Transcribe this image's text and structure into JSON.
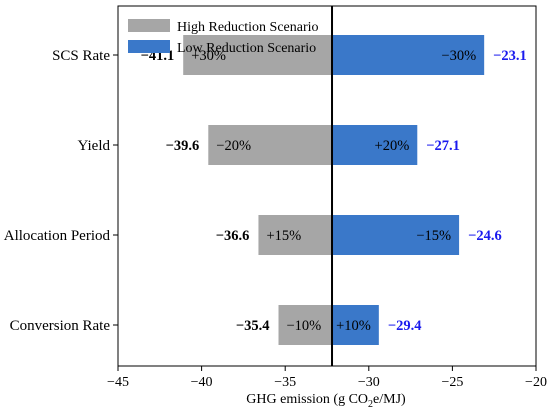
{
  "chart_data": {
    "type": "bar",
    "subtype": "tornado",
    "orientation": "horizontal",
    "baseline": -32.2,
    "categories": [
      "SCS Rate",
      "Yield",
      "Allocation Period",
      "Conversion Rate"
    ],
    "series": [
      {
        "name": "High Reduction Scenario",
        "color": "#a6a6a6",
        "values": [
          -41.1,
          -39.6,
          -36.6,
          -35.4
        ],
        "value_labels": [
          "−41.1",
          "−39.6",
          "−36.6",
          "−35.4"
        ],
        "change_labels": [
          "+30%",
          "−20%",
          "+15%",
          "−10%"
        ],
        "value_label_color": "#000000"
      },
      {
        "name": "Low Reduction Scenario",
        "color": "#3a78c9",
        "values": [
          -23.1,
          -27.1,
          -24.6,
          -29.4
        ],
        "value_labels": [
          "−23.1",
          "−27.1",
          "−24.6",
          "−29.4"
        ],
        "change_labels": [
          "−30%",
          "+20%",
          "−15%",
          "+10%"
        ],
        "value_label_color": "#1a1aee"
      }
    ],
    "x_ticks": [
      -45,
      -40,
      -35,
      -30,
      -25,
      -20
    ],
    "x_tick_labels": [
      "−45",
      "−40",
      "−35",
      "−30",
      "−25",
      "−20"
    ],
    "xlim": [
      -45,
      -20
    ],
    "xlabel_main": "GHG emission (g CO",
    "xlabel_sub": "2",
    "xlabel_tail": "e/MJ)",
    "grid": false,
    "legend": "top-left"
  }
}
